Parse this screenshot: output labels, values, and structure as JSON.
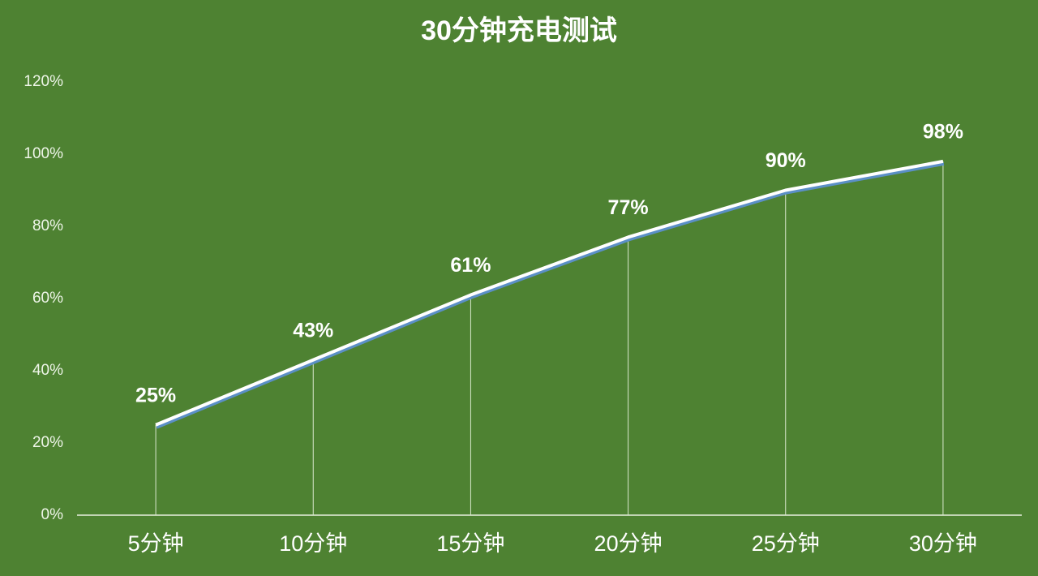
{
  "chart_data": {
    "type": "line",
    "title": "30分钟充电测试",
    "categories": [
      "5分钟",
      "10分钟",
      "15分钟",
      "20分钟",
      "25分钟",
      "30分钟"
    ],
    "values": [
      25,
      43,
      61,
      77,
      90,
      98
    ],
    "value_labels": [
      "25%",
      "43%",
      "61%",
      "77%",
      "90%",
      "98%"
    ],
    "color": "#ffffff",
    "ylim": [
      0,
      120
    ],
    "yticks": [
      {
        "value": 0,
        "label": "0%"
      },
      {
        "value": 20,
        "label": "20%"
      },
      {
        "value": 40,
        "label": "40%"
      },
      {
        "value": 60,
        "label": "60%"
      },
      {
        "value": 80,
        "label": "80%"
      },
      {
        "value": 100,
        "label": "100%"
      },
      {
        "value": 120,
        "label": "120%"
      }
    ],
    "grid": false
  }
}
